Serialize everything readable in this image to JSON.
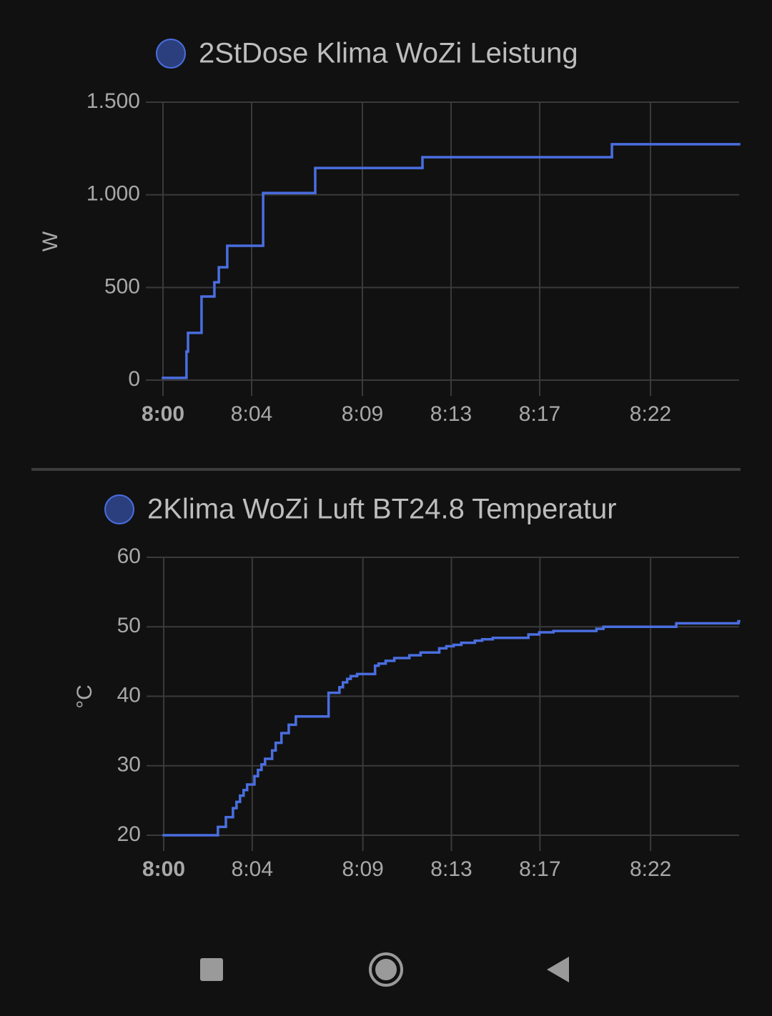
{
  "chart_data": [
    {
      "type": "step-line",
      "series": [
        {
          "name": "2StDose Klima WoZi Leistung",
          "color": "#4a6ee0",
          "x": [
            0,
            1.06,
            1.13,
            1.74,
            2.32,
            2.52,
            2.9,
            4.52,
            6.87,
            11.71,
            20.26
          ],
          "values": [
            12,
            154,
            255,
            451,
            528,
            609,
            725,
            1010,
            1145,
            1203,
            1273
          ]
        }
      ],
      "ylabel": "W",
      "xlim": [
        0,
        26
      ],
      "xticks": [
        {
          "value": 0,
          "label": "8:00"
        },
        {
          "value": 4,
          "label": "8:04"
        },
        {
          "value": 9,
          "label": "8:09"
        },
        {
          "value": 13,
          "label": "8:13"
        },
        {
          "value": 17,
          "label": "8:17"
        },
        {
          "value": 22,
          "label": "8:22"
        }
      ],
      "ylim": [
        0,
        1500
      ],
      "yticks": [
        0,
        500,
        {
          "value": 1000,
          "label": "1.000"
        },
        {
          "value": 1500,
          "label": "1.500"
        }
      ],
      "grid": true
    },
    {
      "type": "step-line",
      "series": [
        {
          "name": "2Klima WoZi Luft BT24.8 Temperatur",
          "color": "#4a6ee0",
          "x": [
            0,
            2.45,
            2.81,
            3.13,
            3.29,
            3.45,
            3.61,
            3.77,
            4.1,
            4.26,
            4.42,
            4.58,
            4.9,
            5.06,
            5.32,
            5.65,
            5.97,
            7.45,
            7.94,
            8.1,
            8.29,
            8.45,
            8.74,
            9.55,
            9.71,
            10.03,
            10.42,
            11.1,
            11.61,
            12.45,
            12.77,
            13.1,
            13.45,
            14.06,
            14.39,
            14.87,
            16.48,
            16.97,
            17.61,
            19.55,
            19.87,
            23.16,
            25.97
          ],
          "values": [
            20,
            21.2,
            22.6,
            23.9,
            24.8,
            25.7,
            26.5,
            27.3,
            28.5,
            29.4,
            30.2,
            31.0,
            32.2,
            33.3,
            34.7,
            35.9,
            37.1,
            40.5,
            41.3,
            42.0,
            42.5,
            42.9,
            43.2,
            44.4,
            44.7,
            45.1,
            45.5,
            45.9,
            46.3,
            46.9,
            47.2,
            47.4,
            47.7,
            48.0,
            48.2,
            48.4,
            48.9,
            49.2,
            49.4,
            49.7,
            50.0,
            50.5,
            50.8
          ]
        }
      ],
      "ylabel": "°C",
      "xlim": [
        0,
        26
      ],
      "xticks": [
        {
          "value": 0,
          "label": "8:00"
        },
        {
          "value": 4,
          "label": "8:04"
        },
        {
          "value": 9,
          "label": "8:09"
        },
        {
          "value": 13,
          "label": "8:13"
        },
        {
          "value": 17,
          "label": "8:17"
        },
        {
          "value": 22,
          "label": "8:22"
        }
      ],
      "ylim": [
        20,
        60
      ],
      "yticks": [
        20,
        30,
        40,
        50,
        60
      ],
      "grid": true
    }
  ]
}
